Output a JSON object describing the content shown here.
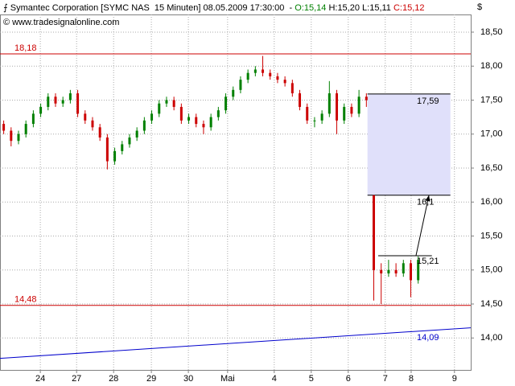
{
  "header": {
    "title": "Symantec Corporation [SYMC NAS  15 Minuten] 08.05.2009 17:30:00  -",
    "open": "O:15,14",
    "high": "H:15,20",
    "low": "L:15,11",
    "close": "C:15,12",
    "copyright": "© www.tradesignalonline.com",
    "currency": "$"
  },
  "chart_data": {
    "type": "ohlc",
    "up_color": "#008000",
    "down_color": "#cc0000",
    "grid": true,
    "xlim": [
      0,
      12.72
    ],
    "ylim": [
      13.53,
      18.76
    ],
    "xticks": [
      {
        "value": 1.09,
        "label": "24"
      },
      {
        "value": 2.07,
        "label": "27"
      },
      {
        "value": 3.07,
        "label": "28"
      },
      {
        "value": 4.09,
        "label": "29"
      },
      {
        "value": 5.09,
        "label": "30"
      },
      {
        "value": 6.15,
        "label": "Mai"
      },
      {
        "value": 7.41,
        "label": "4"
      },
      {
        "value": 8.41,
        "label": "5"
      },
      {
        "value": 9.41,
        "label": "6"
      },
      {
        "value": 10.41,
        "label": "7"
      },
      {
        "value": 11.11,
        "label": "8"
      },
      {
        "value": 12.28,
        "label": "9"
      }
    ],
    "yticks": [
      {
        "value": 14.0,
        "label": "14,00"
      },
      {
        "value": 14.5,
        "label": "14,50"
      },
      {
        "value": 15.0,
        "label": "15,00"
      },
      {
        "value": 15.5,
        "label": "15,50"
      },
      {
        "value": 16.0,
        "label": "16,00"
      },
      {
        "value": 16.5,
        "label": "16,50"
      },
      {
        "value": 17.0,
        "label": "17,00"
      },
      {
        "value": 17.5,
        "label": "17,50"
      },
      {
        "value": 18.0,
        "label": "18,00"
      },
      {
        "value": 18.5,
        "label": "18,50"
      }
    ],
    "x": [
      0.1,
      0.3,
      0.5,
      0.7,
      0.9,
      1.1,
      1.3,
      1.5,
      1.7,
      1.9,
      2.1,
      2.3,
      2.5,
      2.7,
      2.9,
      3.1,
      3.3,
      3.5,
      3.7,
      3.9,
      4.1,
      4.3,
      4.5,
      4.7,
      4.9,
      5.1,
      5.3,
      5.5,
      5.7,
      5.9,
      6.1,
      6.3,
      6.5,
      6.7,
      6.9,
      7.1,
      7.3,
      7.5,
      7.7,
      7.9,
      8.1,
      8.3,
      8.5,
      8.7,
      8.9,
      9.1,
      9.3,
      9.5,
      9.7,
      9.9,
      10.1,
      10.3,
      10.5,
      10.7,
      10.9,
      11.1,
      11.3
    ],
    "open": [
      17.15,
      17.05,
      16.9,
      17.0,
      17.15,
      17.3,
      17.4,
      17.55,
      17.45,
      17.5,
      17.6,
      17.3,
      17.2,
      17.1,
      16.95,
      16.6,
      16.75,
      16.85,
      16.95,
      17.05,
      17.2,
      17.3,
      17.45,
      17.5,
      17.4,
      17.2,
      17.25,
      17.15,
      17.1,
      17.25,
      17.35,
      17.55,
      17.65,
      17.8,
      17.9,
      17.95,
      17.9,
      17.85,
      17.8,
      17.75,
      17.6,
      17.4,
      17.2,
      17.2,
      17.3,
      17.6,
      17.2,
      17.4,
      17.3,
      17.55,
      16.1,
      15.0,
      14.95,
      15.0,
      14.95,
      15.1,
      14.85
    ],
    "high": [
      17.2,
      17.1,
      17.05,
      17.2,
      17.35,
      17.45,
      17.6,
      17.6,
      17.55,
      17.65,
      17.65,
      17.35,
      17.25,
      17.15,
      17.0,
      16.8,
      16.9,
      17.0,
      17.1,
      17.25,
      17.35,
      17.5,
      17.55,
      17.55,
      17.45,
      17.3,
      17.3,
      17.2,
      17.3,
      17.4,
      17.6,
      17.7,
      17.85,
      17.95,
      18.0,
      18.15,
      17.95,
      17.9,
      17.85,
      17.8,
      17.65,
      17.45,
      17.25,
      17.35,
      17.78,
      17.65,
      17.45,
      17.45,
      17.65,
      17.6,
      16.1,
      15.1,
      15.15,
      15.1,
      15.15,
      15.15,
      15.2
    ],
    "low": [
      17.0,
      16.82,
      16.85,
      16.95,
      17.1,
      17.25,
      17.35,
      17.4,
      17.4,
      17.45,
      17.25,
      17.15,
      17.05,
      16.9,
      16.48,
      16.55,
      16.7,
      16.8,
      16.9,
      17.0,
      17.15,
      17.25,
      17.4,
      17.35,
      17.15,
      17.15,
      17.1,
      17.0,
      17.05,
      17.2,
      17.3,
      17.5,
      17.6,
      17.75,
      17.85,
      17.85,
      17.8,
      17.75,
      17.7,
      17.55,
      17.35,
      17.15,
      17.1,
      17.15,
      17.25,
      17.0,
      17.15,
      17.25,
      17.25,
      17.4,
      14.55,
      14.5,
      14.9,
      14.9,
      14.9,
      14.6,
      14.8
    ],
    "close": [
      17.05,
      16.9,
      17.0,
      17.15,
      17.3,
      17.4,
      17.55,
      17.45,
      17.5,
      17.6,
      17.3,
      17.2,
      17.1,
      16.95,
      16.6,
      16.75,
      16.85,
      16.95,
      17.05,
      17.2,
      17.3,
      17.45,
      17.5,
      17.4,
      17.2,
      17.25,
      17.15,
      17.1,
      17.25,
      17.35,
      17.55,
      17.65,
      17.8,
      17.9,
      17.95,
      17.9,
      17.85,
      17.8,
      17.75,
      17.6,
      17.4,
      17.2,
      17.2,
      17.3,
      17.6,
      17.2,
      17.4,
      17.3,
      17.55,
      17.5,
      15.0,
      14.95,
      15.0,
      14.95,
      15.1,
      14.85,
      15.15
    ],
    "hlines": [
      {
        "value": 18.18,
        "label": "18,18",
        "color": "#cc0000"
      },
      {
        "value": 14.48,
        "label": "14,48",
        "color": "#cc0000"
      }
    ],
    "zone": {
      "x": [
        9.93,
        12.17
      ],
      "y": [
        16.1,
        17.59
      ],
      "labels": [
        "16,1",
        "17,59"
      ],
      "color": "#e0e0fa"
    },
    "level": {
      "x": [
        10.22,
        11.67
      ],
      "value": 15.21,
      "label": "15,21"
    },
    "arrow": {
      "x": [
        11.24,
        11.59
      ],
      "y": [
        15.21,
        16.1
      ]
    },
    "trend": {
      "x": [
        0,
        12.72
      ],
      "y": [
        13.7,
        14.15
      ],
      "label": "14,09",
      "color": "#0000cc"
    }
  }
}
